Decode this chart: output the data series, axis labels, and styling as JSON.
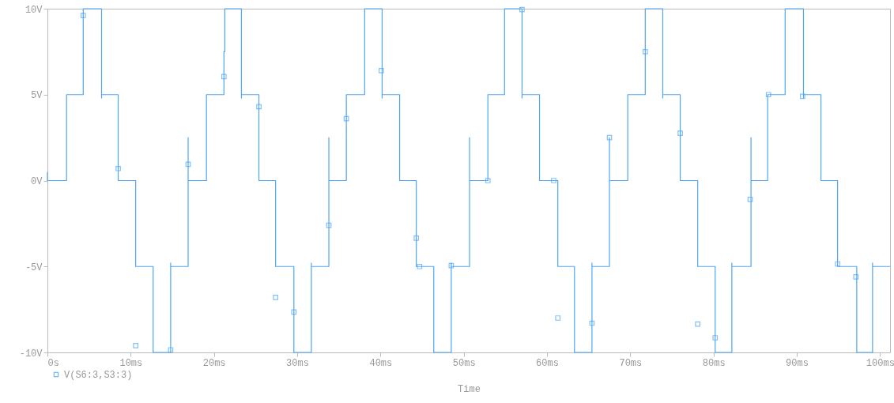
{
  "chart_data": {
    "type": "step",
    "xlabel": "Time",
    "legend": "bottom left",
    "grid": false,
    "line_style": "solid",
    "xlim": [
      0,
      101.2
    ],
    "ylim": [
      -10,
      10
    ],
    "xticks": [
      {
        "value": 0,
        "label": "0s"
      },
      {
        "value": 10,
        "label": "10ms"
      },
      {
        "value": 20,
        "label": "20ms"
      },
      {
        "value": 30,
        "label": "30ms"
      },
      {
        "value": 40,
        "label": "40ms"
      },
      {
        "value": 50,
        "label": "50ms"
      },
      {
        "value": 60,
        "label": "60ms"
      },
      {
        "value": 70,
        "label": "70ms"
      },
      {
        "value": 80,
        "label": "80ms"
      },
      {
        "value": 90,
        "label": "90ms"
      },
      {
        "value": 100,
        "label": "100ms"
      }
    ],
    "yticks": [
      {
        "value": -10,
        "label": "-10V"
      },
      {
        "value": -5,
        "label": "-5V"
      },
      {
        "value": 0,
        "label": "0V"
      },
      {
        "value": 5,
        "label": "5V"
      },
      {
        "value": 10,
        "label": "10V"
      }
    ],
    "series": [
      {
        "name": "V(S6:3,S3:3)",
        "color": "#4ea6f5",
        "x": [
          0,
          0,
          2.3,
          4.3,
          6.5,
          6.5,
          8.5,
          10.6,
          12.7,
          14.8,
          14.8,
          16.9,
          16.9,
          19.1,
          21.2,
          21.3,
          23.3,
          23.3,
          25.4,
          27.4,
          29.6,
          31.7,
          31.7,
          33.8,
          33.8,
          35.9,
          38.1,
          40.2,
          40.2,
          42.3,
          44.3,
          46.4,
          48.5,
          48.5,
          50.7,
          50.7,
          52.9,
          54.9,
          57.0,
          57.0,
          59.1,
          61.3,
          63.3,
          65.4,
          65.4,
          67.5,
          67.5,
          69.7,
          71.8,
          73.9,
          73.9,
          76.0,
          78.1,
          80.2,
          82.2,
          82.2,
          84.5,
          84.5,
          86.5,
          88.6,
          90.8,
          90.8,
          92.9,
          94.9,
          97.2,
          99.1,
          99.1,
          101.2
        ],
        "values": [
          0.5,
          0,
          5,
          10,
          4.8,
          5,
          0,
          -5,
          -10,
          -4.8,
          -5,
          2.5,
          0,
          5,
          7.5,
          10,
          4.8,
          5,
          0,
          -5,
          -10,
          -4.8,
          -5,
          2.5,
          0,
          5,
          10,
          4.8,
          5,
          0,
          -5,
          -10,
          -4.8,
          -5,
          2.5,
          0,
          5,
          10,
          4.8,
          5,
          0,
          -5,
          -10,
          -4.8,
          -5,
          2.5,
          0,
          5,
          10,
          4.8,
          5,
          0,
          -5,
          -10,
          -4.8,
          -5,
          2.5,
          0,
          5,
          10,
          4.8,
          5,
          0,
          -5,
          -10,
          -4.8,
          -5,
          -5
        ]
      },
      {
        "type": "scatter",
        "color": "#4ea6f5",
        "marker": "square",
        "x": [
          4.3,
          8.5,
          10.6,
          14.8,
          16.9,
          21.2,
          25.4,
          27.4,
          29.6,
          33.8,
          35.9,
          40.1,
          44.3,
          44.7,
          48.5,
          52.9,
          57.0,
          60.8,
          61.3,
          65.4,
          67.5,
          71.8,
          76.0,
          78.1,
          80.2,
          84.4,
          86.6,
          90.7,
          94.9,
          97.1
        ],
        "values": [
          9.6,
          0.7,
          -9.6,
          -9.85,
          0.95,
          6.05,
          4.3,
          -6.8,
          -7.65,
          -2.6,
          3.6,
          6.4,
          -3.35,
          -5.0,
          -4.95,
          0,
          9.95,
          0,
          -8.0,
          -8.3,
          2.5,
          7.5,
          2.75,
          -8.35,
          -9.15,
          -1.1,
          5.0,
          4.9,
          -4.85,
          -5.6
        ]
      }
    ]
  }
}
